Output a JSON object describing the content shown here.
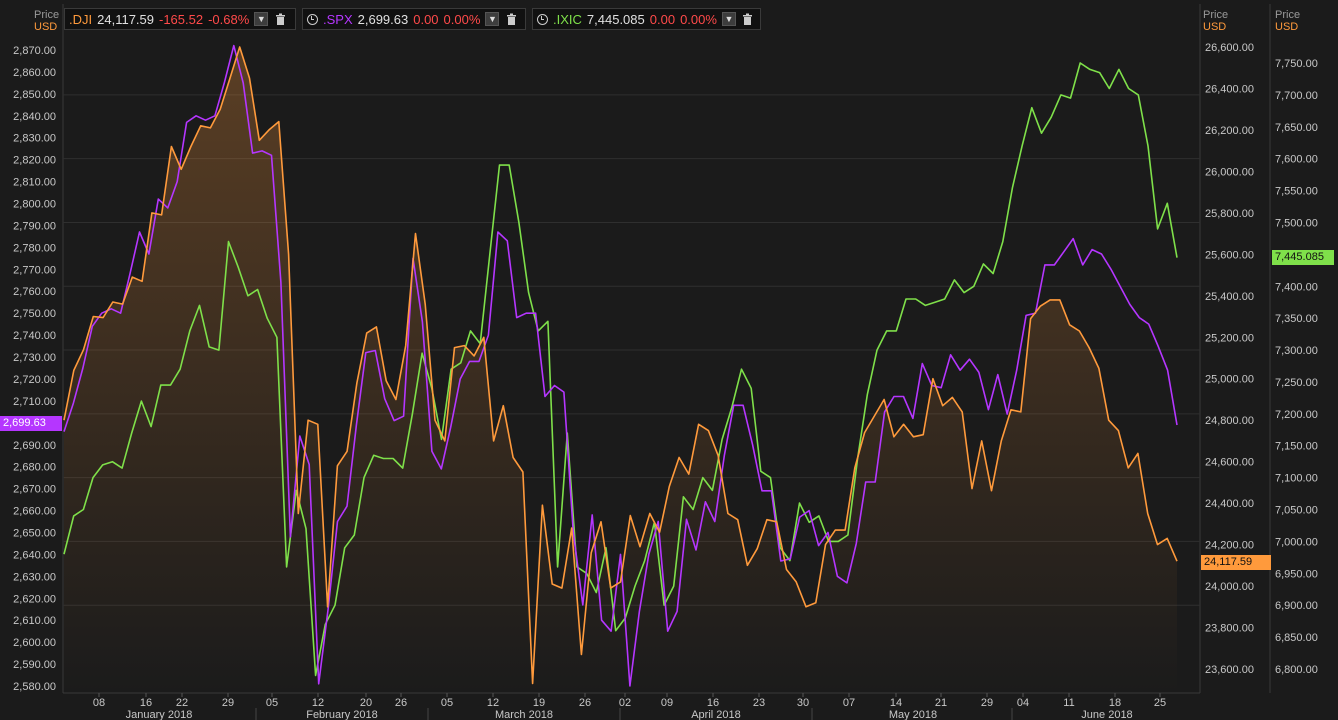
{
  "headers": [
    {
      "symbol": ".DJI",
      "price": "24,117.59",
      "change": "-165.52",
      "pct": "-0.68%",
      "color": "#ff9a3c"
    },
    {
      "symbol": ".SPX",
      "price": "2,699.63",
      "change": "0.00",
      "pct": "0.00%",
      "color": "#b536ff"
    },
    {
      "symbol": ".IXIC",
      "price": "7,445.085",
      "change": "0.00",
      "pct": "0.00%",
      "color": "#7fe04a"
    }
  ],
  "axis_header": {
    "price": "Price",
    "unit": "USD"
  },
  "last_tags": {
    "spx": "2,699.63",
    "ixic": "7,445.085",
    "dji": "24,117.59"
  },
  "colors": {
    "dji": "#ff9a3c",
    "spx": "#b536ff",
    "ixic": "#7fe04a",
    "background": "#1b1b1b",
    "negative": "#ff4a4a"
  },
  "chart_data": {
    "type": "line",
    "x_day_ticks": [
      "08",
      "16",
      "22",
      "29",
      "05",
      "12",
      "20",
      "26",
      "05",
      "12",
      "19",
      "26",
      "02",
      "09",
      "16",
      "23",
      "30",
      "07",
      "14",
      "21",
      "29",
      "04",
      "11",
      "18",
      "25"
    ],
    "x_month_labels": [
      "January 2018",
      "February 2018",
      "March 2018",
      "April 2018",
      "May 2018",
      "June 2018"
    ],
    "axes": [
      {
        "id": "spx",
        "side": "left",
        "range": [
          2580,
          2870
        ],
        "ticks": [
          "2,580.00",
          "2,590.00",
          "2,600.00",
          "2,610.00",
          "2,620.00",
          "2,630.00",
          "2,640.00",
          "2,650.00",
          "2,660.00",
          "2,670.00",
          "2,680.00",
          "2,690.00",
          "2,700.00",
          "2,710.00",
          "2,720.00",
          "2,730.00",
          "2,740.00",
          "2,750.00",
          "2,760.00",
          "2,770.00",
          "2,780.00",
          "2,790.00",
          "2,800.00",
          "2,810.00",
          "2,820.00",
          "2,830.00",
          "2,840.00",
          "2,850.00",
          "2,860.00",
          "2,870.00"
        ]
      },
      {
        "id": "dji",
        "side": "right-inner",
        "range": [
          23600,
          26600
        ],
        "ticks": [
          "23,600.00",
          "23,800.00",
          "24,000.00",
          "24,200.00",
          "24,400.00",
          "24,600.00",
          "24,800.00",
          "25,000.00",
          "25,200.00",
          "25,400.00",
          "25,600.00",
          "25,800.00",
          "26,000.00",
          "26,200.00",
          "26,400.00",
          "26,600.00"
        ]
      },
      {
        "id": "ixic",
        "side": "right-outer",
        "range": [
          6800,
          7750
        ],
        "ticks": [
          "6,800.00",
          "6,850.00",
          "6,900.00",
          "6,950.00",
          "7,000.00",
          "7,050.00",
          "7,100.00",
          "7,150.00",
          "7,200.00",
          "7,250.00",
          "7,300.00",
          "7,350.00",
          "7,400.00",
          "7,450.00",
          "7,500.00",
          "7,550.00",
          "7,600.00",
          "7,650.00",
          "7,700.00",
          "7,750.00"
        ]
      }
    ],
    "series": [
      {
        "name": ".DJI",
        "axis": "dji",
        "values": [
          24800,
          25040,
          25140,
          25300,
          25295,
          25370,
          25360,
          25490,
          25470,
          25800,
          25790,
          26120,
          26010,
          26120,
          26220,
          26210,
          26300,
          26450,
          26600,
          26450,
          26150,
          26200,
          26240,
          25600,
          24350,
          24800,
          24780,
          23900,
          24580,
          24650,
          24980,
          25220,
          25250,
          24990,
          24900,
          25160,
          25700,
          25360,
          24800,
          24700,
          25150,
          25160,
          25110,
          25200,
          24700,
          24870,
          24620,
          24550,
          23530,
          24390,
          24010,
          23990,
          24280,
          23670,
          24160,
          24310,
          23990,
          24020,
          24340,
          24190,
          24350,
          24260,
          24480,
          24620,
          24540,
          24780,
          24750,
          24630,
          24350,
          24320,
          24100,
          24180,
          24320,
          24310,
          24080,
          24020,
          23900,
          23920,
          24200,
          24270,
          24270,
          24570,
          24740,
          24820,
          24900,
          24720,
          24780,
          24720,
          24730,
          25000,
          24870,
          24910,
          24840,
          24470,
          24700,
          24460,
          24700,
          24850,
          24840,
          25290,
          25350,
          25380,
          25380,
          25260,
          25230,
          25150,
          25050,
          24800,
          24750,
          24570,
          24640,
          24350,
          24200,
          24230,
          24120
        ]
      },
      {
        "name": ".SPX",
        "axis": "spx",
        "values": [
          2696,
          2709,
          2725,
          2744,
          2750,
          2752,
          2750,
          2768,
          2787,
          2777,
          2802,
          2798,
          2810,
          2837,
          2840,
          2838,
          2840,
          2855,
          2872,
          2855,
          2823,
          2824,
          2822,
          2764,
          2648,
          2694,
          2681,
          2581,
          2615,
          2655,
          2662,
          2699,
          2732,
          2733,
          2711,
          2701,
          2703,
          2775,
          2746,
          2687,
          2679,
          2698,
          2720,
          2728,
          2728,
          2740,
          2787,
          2783,
          2748,
          2750,
          2750,
          2712,
          2717,
          2714,
          2650,
          2617,
          2658,
          2610,
          2605,
          2640,
          2580,
          2614,
          2640,
          2655,
          2605,
          2614,
          2656,
          2642,
          2664,
          2655,
          2685,
          2708,
          2708,
          2690,
          2669,
          2669,
          2637,
          2638,
          2657,
          2660,
          2644,
          2650,
          2630,
          2627,
          2645,
          2673,
          2673,
          2705,
          2712,
          2712,
          2702,
          2727,
          2717,
          2716,
          2731,
          2724,
          2729,
          2723,
          2706,
          2722,
          2704,
          2724,
          2749,
          2750,
          2772,
          2772,
          2778,
          2784,
          2772,
          2779,
          2777,
          2770,
          2762,
          2754,
          2748,
          2745,
          2735,
          2724,
          2699
        ]
      },
      {
        "name": ".IXIC",
        "axis": "ixic",
        "values": [
          6980,
          7040,
          7050,
          7100,
          7120,
          7125,
          7115,
          7170,
          7220,
          7180,
          7245,
          7245,
          7270,
          7330,
          7370,
          7305,
          7300,
          7470,
          7430,
          7385,
          7395,
          7350,
          7320,
          6960,
          7080,
          7020,
          6790,
          6870,
          6900,
          6990,
          7010,
          7100,
          7135,
          7130,
          7130,
          7115,
          7200,
          7295,
          7240,
          7160,
          7270,
          7280,
          7330,
          7310,
          7450,
          7590,
          7590,
          7500,
          7390,
          7330,
          7345,
          6960,
          7170,
          6960,
          6950,
          6920,
          6990,
          6860,
          6880,
          6930,
          6970,
          7030,
          6900,
          6930,
          7070,
          7050,
          7100,
          7080,
          7160,
          7210,
          7270,
          7240,
          7110,
          7100,
          6990,
          6970,
          7060,
          7030,
          7040,
          7000,
          7000,
          7010,
          7130,
          7230,
          7300,
          7330,
          7330,
          7380,
          7380,
          7370,
          7375,
          7380,
          7410,
          7390,
          7400,
          7435,
          7420,
          7470,
          7555,
          7620,
          7680,
          7640,
          7665,
          7700,
          7695,
          7750,
          7740,
          7735,
          7710,
          7740,
          7710,
          7700,
          7620,
          7490,
          7530,
          7445
        ]
      }
    ]
  }
}
